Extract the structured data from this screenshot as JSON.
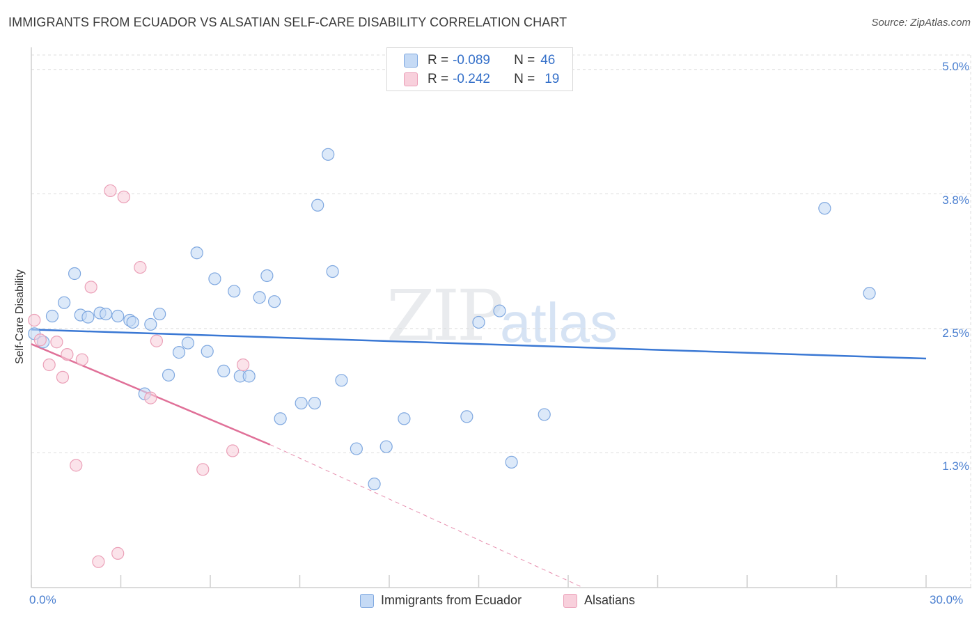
{
  "header": {
    "title": "IMMIGRANTS FROM ECUADOR VS ALSATIAN SELF-CARE DISABILITY CORRELATION CHART",
    "source": "Source: ZipAtlas.com"
  },
  "watermark": {
    "zip": "ZIP",
    "atlas": "atlas"
  },
  "legend": {
    "rows": [
      {
        "r_label": "R = ",
        "r_value": "-0.089",
        "n_label": "N = ",
        "n_value": "46",
        "color": "#a8c6ef"
      },
      {
        "r_label": "R = ",
        "r_value": "-0.242",
        "n_label": "N = ",
        "n_value": "19",
        "color": "#f4b5c8"
      }
    ]
  },
  "chart_data": {
    "type": "scatter",
    "title": "IMMIGRANTS FROM ECUADOR VS ALSATIAN SELF-CARE DISABILITY CORRELATION CHART",
    "xlabel": "",
    "ylabel": "Self-Care Disability",
    "xlim": [
      0,
      30
    ],
    "ylim": [
      0,
      5.2
    ],
    "x_tick_labels": [
      "0.0%",
      "30.0%"
    ],
    "y_ticks": [
      1.3,
      2.5,
      3.8,
      5.0
    ],
    "y_tick_labels": [
      "1.3%",
      "2.5%",
      "3.8%",
      "5.0%"
    ],
    "grid": true,
    "colors": {
      "ecuador": "#3a78d4",
      "alsatian": "#e07098",
      "ecuador_fill": "#c5daf5",
      "alsatian_fill": "#f8d0dc"
    },
    "series": [
      {
        "name": "Immigrants from Ecuador",
        "points": [
          [
            0.1,
            2.45
          ],
          [
            0.4,
            2.37
          ],
          [
            0.7,
            2.62
          ],
          [
            1.1,
            2.75
          ],
          [
            1.45,
            3.03
          ],
          [
            1.65,
            2.63
          ],
          [
            1.9,
            2.61
          ],
          [
            2.3,
            2.65
          ],
          [
            2.5,
            2.64
          ],
          [
            2.9,
            2.62
          ],
          [
            3.3,
            2.58
          ],
          [
            3.4,
            2.56
          ],
          [
            3.8,
            1.87
          ],
          [
            4.0,
            2.54
          ],
          [
            4.3,
            2.64
          ],
          [
            4.6,
            2.05
          ],
          [
            4.95,
            2.27
          ],
          [
            5.25,
            2.36
          ],
          [
            5.55,
            3.23
          ],
          [
            5.9,
            2.28
          ],
          [
            6.15,
            2.98
          ],
          [
            6.45,
            2.09
          ],
          [
            6.8,
            2.86
          ],
          [
            7.0,
            2.04
          ],
          [
            7.3,
            2.04
          ],
          [
            7.65,
            2.8
          ],
          [
            7.9,
            3.01
          ],
          [
            8.15,
            2.76
          ],
          [
            8.35,
            1.63
          ],
          [
            9.05,
            1.78
          ],
          [
            9.5,
            1.78
          ],
          [
            9.6,
            3.69
          ],
          [
            9.95,
            4.18
          ],
          [
            10.1,
            3.05
          ],
          [
            10.4,
            2.0
          ],
          [
            10.9,
            1.34
          ],
          [
            11.5,
            1.0
          ],
          [
            11.9,
            1.36
          ],
          [
            12.5,
            1.63
          ],
          [
            14.6,
            1.65
          ],
          [
            15.0,
            2.56
          ],
          [
            15.7,
            2.67
          ],
          [
            16.1,
            1.21
          ],
          [
            17.2,
            1.67
          ],
          [
            26.6,
            3.66
          ],
          [
            28.1,
            2.84
          ]
        ]
      },
      {
        "name": "Alsatians",
        "points": [
          [
            0.1,
            2.58
          ],
          [
            0.3,
            2.39
          ],
          [
            0.6,
            2.15
          ],
          [
            0.85,
            2.37
          ],
          [
            1.05,
            2.03
          ],
          [
            1.2,
            2.25
          ],
          [
            1.5,
            1.18
          ],
          [
            1.7,
            2.2
          ],
          [
            2.0,
            2.9
          ],
          [
            2.25,
            0.25
          ],
          [
            2.65,
            3.83
          ],
          [
            2.9,
            0.33
          ],
          [
            3.1,
            3.77
          ],
          [
            3.65,
            3.09
          ],
          [
            4.0,
            1.83
          ],
          [
            4.2,
            2.38
          ],
          [
            5.75,
            1.14
          ],
          [
            6.75,
            1.32
          ],
          [
            7.1,
            2.15
          ]
        ]
      }
    ],
    "trend_lines": [
      {
        "series": "Immigrants from Ecuador",
        "x": [
          0,
          30
        ],
        "y": [
          2.49,
          2.21
        ],
        "style": "solid"
      },
      {
        "series": "Alsatians",
        "x": [
          0,
          8
        ],
        "y": [
          2.35,
          1.38
        ],
        "style": "solid"
      },
      {
        "series": "Alsatians",
        "x": [
          8,
          18.5
        ],
        "y": [
          1.38,
          0.0
        ],
        "style": "dashed"
      }
    ]
  },
  "bottom_legend": {
    "items": [
      {
        "label": "Immigrants from Ecuador"
      },
      {
        "label": "Alsatians"
      }
    ]
  }
}
